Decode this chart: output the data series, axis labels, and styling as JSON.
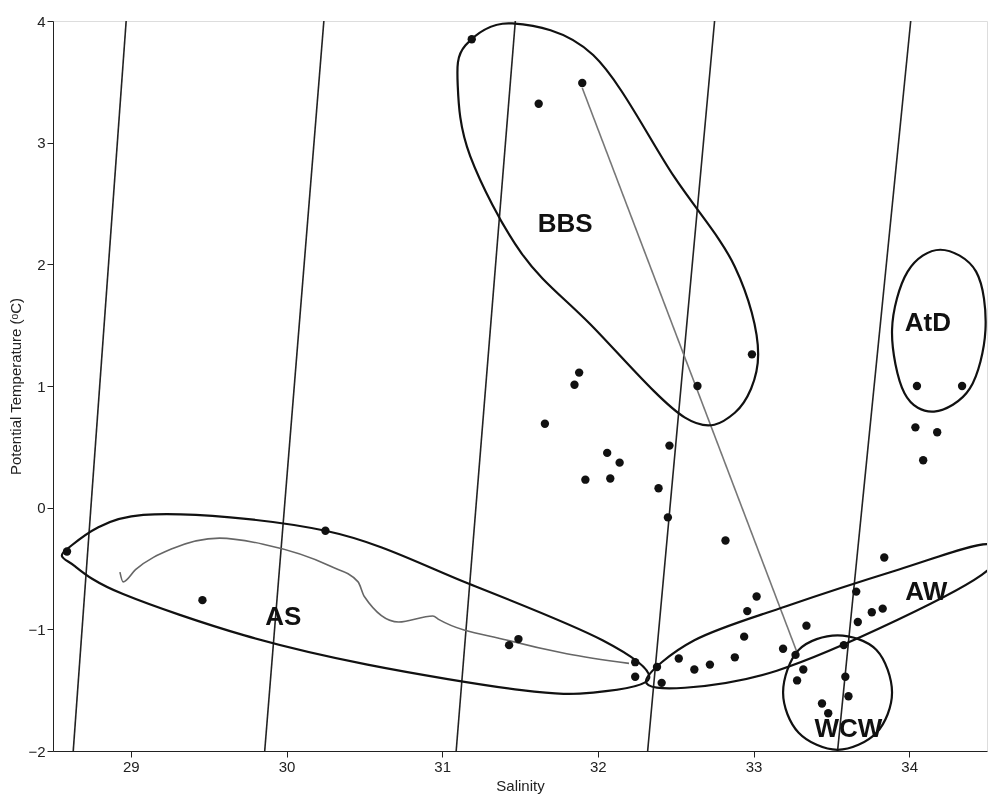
{
  "chart_data": {
    "type": "scatter",
    "xlabel": "Salinity",
    "ylabel": "Potential Temperature (ᵒC)",
    "xlim": [
      28.5,
      34.5
    ],
    "ylim": [
      -2,
      4
    ],
    "xticks": [
      29,
      30,
      31,
      32,
      33,
      34
    ],
    "yticks": [
      -2,
      -1,
      0,
      1,
      2,
      3,
      4
    ],
    "grid": false,
    "series": [
      {
        "type": "line",
        "color": "#222222",
        "marker": "none",
        "line_style": "solid",
        "x": [
          28.63,
          28.97
        ],
        "values": [
          -2,
          4
        ]
      },
      {
        "type": "line",
        "color": "#222222",
        "marker": "none",
        "line_style": "solid",
        "x": [
          29.86,
          30.24
        ],
        "values": [
          -2,
          4
        ]
      },
      {
        "type": "line",
        "color": "#222222",
        "marker": "none",
        "line_style": "solid",
        "x": [
          31.09,
          31.47
        ],
        "values": [
          -2,
          4
        ]
      },
      {
        "type": "line",
        "color": "#222222",
        "marker": "none",
        "line_style": "solid",
        "x": [
          32.32,
          32.75
        ],
        "values": [
          -2,
          4
        ]
      },
      {
        "type": "line",
        "color": "#222222",
        "marker": "none",
        "line_style": "solid",
        "x": [
          33.54,
          34.01
        ],
        "values": [
          -2,
          4
        ]
      },
      {
        "type": "line",
        "color": "#777777",
        "marker": "none",
        "line_style": "solid",
        "x": [
          31.9,
          33.28
        ],
        "values": [
          3.45,
          -1.19
        ]
      },
      {
        "type": "line",
        "color": "#666666",
        "marker": "none",
        "line_style": "solid",
        "x": [
          28.93,
          28.95,
          29.03,
          29.26,
          29.57,
          29.85,
          30.28,
          30.46,
          30.5,
          30.72,
          30.94,
          30.98,
          31.42,
          31.8,
          32.2
        ],
        "values": [
          -0.53,
          -0.61,
          -0.51,
          -0.34,
          -0.25,
          -0.3,
          -0.48,
          -0.61,
          -0.73,
          -0.94,
          -0.89,
          -0.92,
          -1.09,
          -1.2,
          -1.28
        ]
      },
      {
        "color": "#111111",
        "marker": "circle",
        "x": [
          31.19,
          31.62,
          31.9,
          32.99,
          32.64,
          34.05,
          34.34,
          31.88,
          31.85,
          31.66,
          28.59,
          30.25,
          29.46,
          31.43,
          31.49,
          32.06,
          32.14,
          31.92,
          32.08,
          32.46,
          32.39,
          32.45,
          32.82,
          33.84,
          34.04,
          34.18,
          34.09,
          33.02,
          32.96,
          33.66,
          33.83,
          33.76,
          33.67,
          33.34,
          32.94,
          33.19,
          32.88,
          32.52,
          32.72,
          32.62,
          32.24,
          32.24,
          32.38,
          32.41,
          33.27,
          33.32,
          33.28,
          33.58,
          33.59,
          33.61,
          33.44,
          33.48
        ],
        "values": [
          3.85,
          3.32,
          3.49,
          1.26,
          1.0,
          1.0,
          1.0,
          1.11,
          1.01,
          0.69,
          -0.36,
          -0.19,
          -0.76,
          -1.13,
          -1.08,
          0.45,
          0.37,
          0.23,
          0.24,
          0.51,
          0.16,
          -0.08,
          -0.27,
          -0.41,
          0.66,
          0.62,
          0.39,
          -0.73,
          -0.85,
          -0.69,
          -0.83,
          -0.86,
          -0.94,
          -0.97,
          -1.06,
          -1.16,
          -1.23,
          -1.24,
          -1.29,
          -1.33,
          -1.27,
          -1.39,
          -1.31,
          -1.44,
          -1.21,
          -1.33,
          -1.42,
          -1.13,
          -1.39,
          -1.55,
          -1.61,
          -1.69
        ]
      }
    ],
    "annotations": [
      "AS",
      "BBS",
      "AtD",
      "AW",
      "WCW"
    ]
  }
}
